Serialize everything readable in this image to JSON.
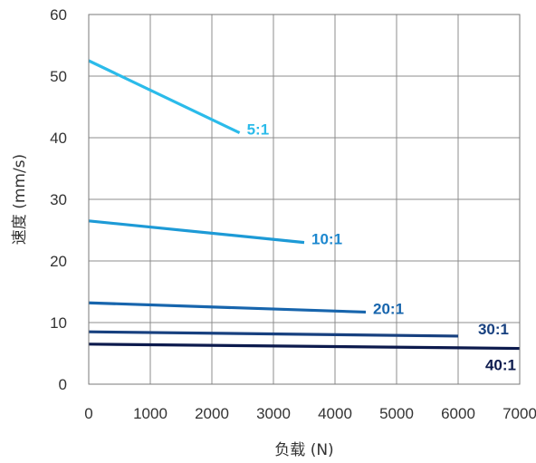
{
  "chart_data": {
    "type": "line",
    "title": "",
    "xlabel": "负载 (N)",
    "ylabel": "速度 (mm/s)",
    "xlim": [
      0,
      7000
    ],
    "ylim": [
      0,
      60
    ],
    "xticks": [
      "0",
      "1000",
      "2000",
      "3000",
      "4000",
      "5000",
      "6000",
      "7000"
    ],
    "yticks": [
      "0",
      "10",
      "20",
      "30",
      "40",
      "50",
      "60"
    ],
    "grid": true,
    "legend": "inline labels at line ends",
    "series": [
      {
        "name": "5:1",
        "color": "#2bbbea",
        "label_color": "#2bbbea",
        "x": [
          0,
          2450
        ],
        "y": [
          52.5,
          40.8
        ]
      },
      {
        "name": "10:1",
        "color": "#1d9ad6",
        "label_color": "#1d88cf",
        "x": [
          0,
          3500
        ],
        "y": [
          26.5,
          23.0
        ]
      },
      {
        "name": "20:1",
        "color": "#1765ad",
        "label_color": "#1765ad",
        "x": [
          0,
          4500
        ],
        "y": [
          13.2,
          11.7
        ]
      },
      {
        "name": "30:1",
        "color": "#17407f",
        "label_color": "#17407f",
        "x": [
          0,
          6000
        ],
        "y": [
          8.5,
          7.8
        ]
      },
      {
        "name": "40:1",
        "color": "#0c1a4d",
        "label_color": "#0c1a4d",
        "x": [
          0,
          7000
        ],
        "y": [
          6.5,
          5.8
        ]
      }
    ]
  }
}
